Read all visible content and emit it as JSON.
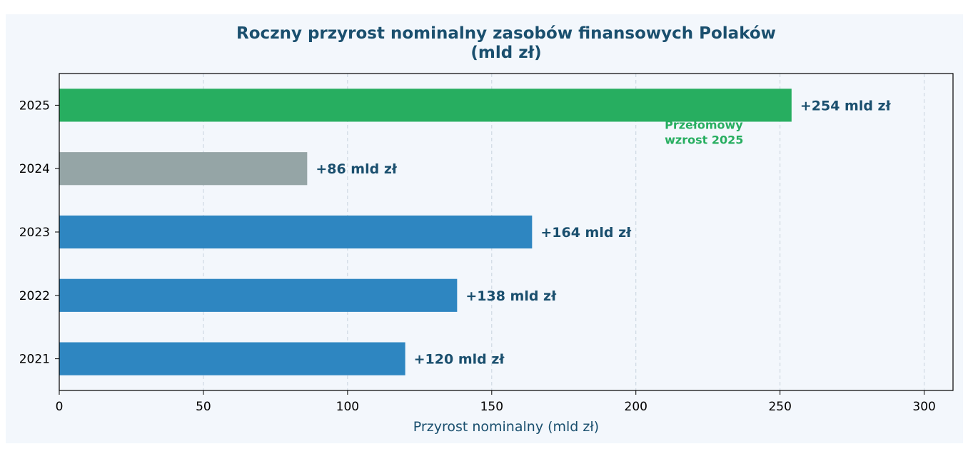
{
  "chart_data": {
    "type": "bar",
    "orientation": "horizontal",
    "title": "Roczny przyrost nominalny zasobów finansowych Polaków",
    "title_line2": "(mld zł)",
    "xlabel": "Przyrost nominalny (mld zł)",
    "ylabel": "",
    "categories": [
      "2021",
      "2022",
      "2023",
      "2024",
      "2025"
    ],
    "values": [
      120,
      138,
      164,
      86,
      254
    ],
    "value_labels": [
      "+120 mld zł",
      "+138 mld zł",
      "+164 mld zł",
      "+86 mld zł",
      "+254 mld zł"
    ],
    "bar_colors": [
      "#2e86c1",
      "#2e86c1",
      "#2e86c1",
      "#95a5a6",
      "#27ae60"
    ],
    "xlim": [
      0,
      310
    ],
    "xticks": [
      0,
      50,
      100,
      150,
      200,
      250,
      300
    ],
    "grid": "x-dashed",
    "annotation": {
      "lines": [
        "Przełomowy",
        "wzrost 2025"
      ],
      "x": 210,
      "category": "2025",
      "color": "#27ae60"
    },
    "colors": {
      "title": "#1a4f6e",
      "background": "#f3f7fc",
      "grid": "#c8d3de"
    }
  }
}
